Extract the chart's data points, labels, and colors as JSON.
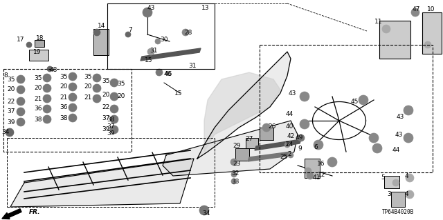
{
  "bg_color": "#ffffff",
  "diagram_code": "TP64B4020B",
  "figsize": [
    6.4,
    3.19
  ],
  "dpi": 100
}
